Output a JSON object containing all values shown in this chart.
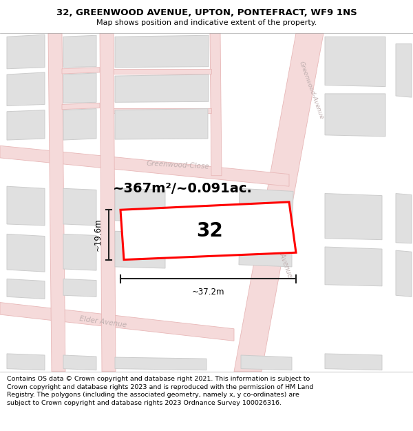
{
  "title_line1": "32, GREENWOOD AVENUE, UPTON, PONTEFRACT, WF9 1NS",
  "title_line2": "Map shows position and indicative extent of the property.",
  "area_text": "~367m²/~0.091ac.",
  "width_label": "~37.2m",
  "height_label": "~19.6m",
  "number_label": "32",
  "footer_text": "Contains OS data © Crown copyright and database right 2021. This information is subject to Crown copyright and database rights 2023 and is reproduced with the permission of HM Land Registry. The polygons (including the associated geometry, namely x, y co-ordinates) are subject to Crown copyright and database rights 2023 Ordnance Survey 100026316.",
  "map_bg": "#f9f9f7",
  "road_fill": "#f5dada",
  "road_edge": "#e8b8b8",
  "building_fill": "#e0e0e0",
  "building_edge": "#cccccc",
  "plot_color": "#ff0000",
  "dim_color": "#222222",
  "street_color": "#c0b0b0",
  "title_fontsize": 9.5,
  "subtitle_fontsize": 8.0,
  "area_fontsize": 14,
  "number_fontsize": 20,
  "dim_fontsize": 8.5,
  "street_fontsize": 7.5,
  "footer_fontsize": 6.8
}
